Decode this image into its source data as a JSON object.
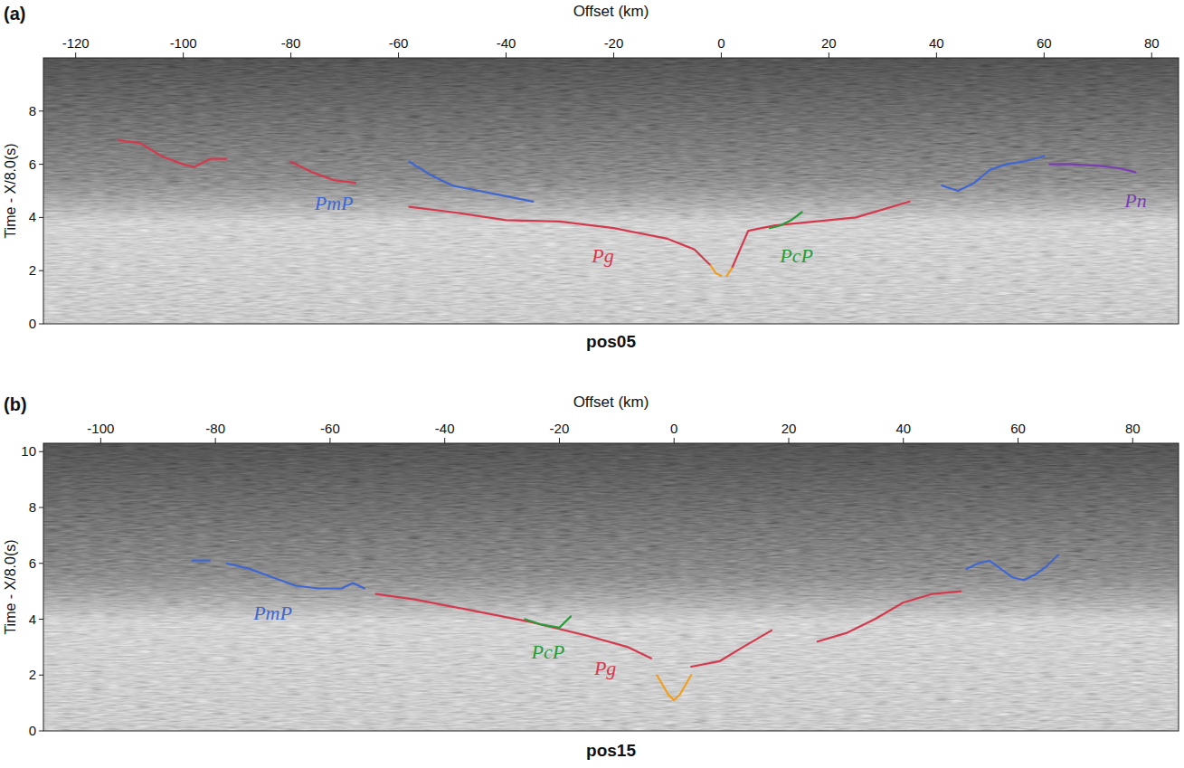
{
  "chart_data": [
    {
      "type": "line",
      "panel_label": "(a)",
      "title": "pos05",
      "x_label": "Offset (km)",
      "y_label": "Time - X/8.0(s)",
      "xlim": [
        -126,
        85
      ],
      "xticks": [
        -120,
        -100,
        -80,
        -60,
        -40,
        -20,
        0,
        20,
        40,
        60,
        80
      ],
      "ylim": [
        0,
        10
      ],
      "yticks": [
        0,
        2,
        4,
        6,
        8
      ],
      "grid": false,
      "series": [
        {
          "name": "PmP",
          "color": "#3f66d1",
          "label_at": [
            -72,
            4.3
          ],
          "x": [
            -58,
            -54,
            -50,
            -45,
            -40,
            -35,
            null,
            41,
            44,
            47,
            50,
            53,
            56,
            60
          ],
          "values": [
            6.1,
            5.6,
            5.2,
            5.0,
            4.8,
            4.6,
            null,
            5.2,
            5.0,
            5.3,
            5.8,
            6.0,
            6.1,
            6.3
          ]
        },
        {
          "name": "Pg",
          "color": "#d43a4e",
          "label_at": [
            -22,
            2.3
          ],
          "x": [
            -112,
            -108,
            -104,
            -100,
            -98,
            -95,
            -92,
            null,
            -80,
            -76,
            -72,
            -68,
            null,
            -58,
            -50,
            -40,
            -30,
            -20,
            -10,
            -5,
            -2,
            null,
            2,
            5,
            10,
            20,
            25,
            30,
            35
          ],
          "values": [
            6.9,
            6.8,
            6.3,
            6.0,
            5.9,
            6.2,
            6.2,
            null,
            6.1,
            5.7,
            5.4,
            5.3,
            null,
            4.4,
            4.2,
            3.9,
            3.85,
            3.6,
            3.2,
            2.8,
            2.2,
            null,
            2.1,
            3.5,
            3.7,
            3.9,
            4.0,
            4.3,
            4.6
          ]
        },
        {
          "name": "PcP",
          "color": "#2a9a3a",
          "label_at": [
            14,
            2.3
          ],
          "x": [
            9,
            11,
            13,
            15
          ],
          "values": [
            3.6,
            3.7,
            3.9,
            4.2
          ]
        },
        {
          "name": "Pn",
          "color": "#7b3db3",
          "label_at": [
            77,
            4.4
          ],
          "x": [
            61,
            65,
            70,
            74,
            77
          ],
          "values": [
            6.0,
            6.0,
            5.95,
            5.85,
            5.7
          ]
        },
        {
          "color": "#f0a020",
          "x": [
            -2,
            -1,
            0,
            null,
            1,
            2
          ],
          "values": [
            2.2,
            1.9,
            1.8,
            null,
            1.8,
            2.1
          ]
        }
      ]
    },
    {
      "type": "line",
      "panel_label": "(b)",
      "title": "pos15",
      "x_label": "Offset (km)",
      "y_label": "Time - X/8.0(s)",
      "xlim": [
        -110,
        88
      ],
      "xticks": [
        -100,
        -80,
        -60,
        -40,
        -20,
        0,
        20,
        40,
        60,
        80
      ],
      "ylim": [
        0,
        10.3
      ],
      "yticks": [
        0,
        2,
        4,
        6,
        8,
        10
      ],
      "grid": false,
      "series": [
        {
          "name": "PmP",
          "color": "#3f66d1",
          "label_at": [
            -70,
            4.0
          ],
          "x": [
            -84,
            -81,
            null,
            -78,
            -74,
            -70,
            -66,
            -62,
            -58,
            -56,
            -54,
            null,
            51,
            53,
            55,
            57,
            59,
            61,
            63,
            65,
            67
          ],
          "values": [
            6.1,
            6.1,
            null,
            6.0,
            5.8,
            5.5,
            5.2,
            5.1,
            5.1,
            5.3,
            5.1,
            null,
            5.8,
            6.0,
            6.1,
            5.8,
            5.5,
            5.4,
            5.6,
            5.9,
            6.3
          ]
        },
        {
          "name": "Pg",
          "color": "#d43a4e",
          "label_at": [
            -12,
            2.0
          ],
          "x": [
            -52,
            -45,
            -35,
            -25,
            -15,
            -8,
            -4,
            null,
            3,
            8,
            12,
            17,
            null,
            25,
            30,
            35,
            40,
            45,
            50
          ],
          "values": [
            4.9,
            4.7,
            4.3,
            3.9,
            3.4,
            3.0,
            2.6,
            null,
            2.3,
            2.5,
            3.0,
            3.6,
            null,
            3.2,
            3.5,
            4.0,
            4.6,
            4.9,
            5.0
          ]
        },
        {
          "name": "PcP",
          "color": "#2a9a3a",
          "label_at": [
            -22,
            2.6
          ],
          "x": [
            -26,
            -23,
            -20,
            -18
          ],
          "values": [
            4.0,
            3.8,
            3.7,
            4.1
          ]
        },
        {
          "color": "#f0a020",
          "x": [
            -3,
            -1,
            0,
            1,
            3
          ],
          "values": [
            2.0,
            1.3,
            1.1,
            1.3,
            2.0
          ]
        }
      ]
    }
  ]
}
